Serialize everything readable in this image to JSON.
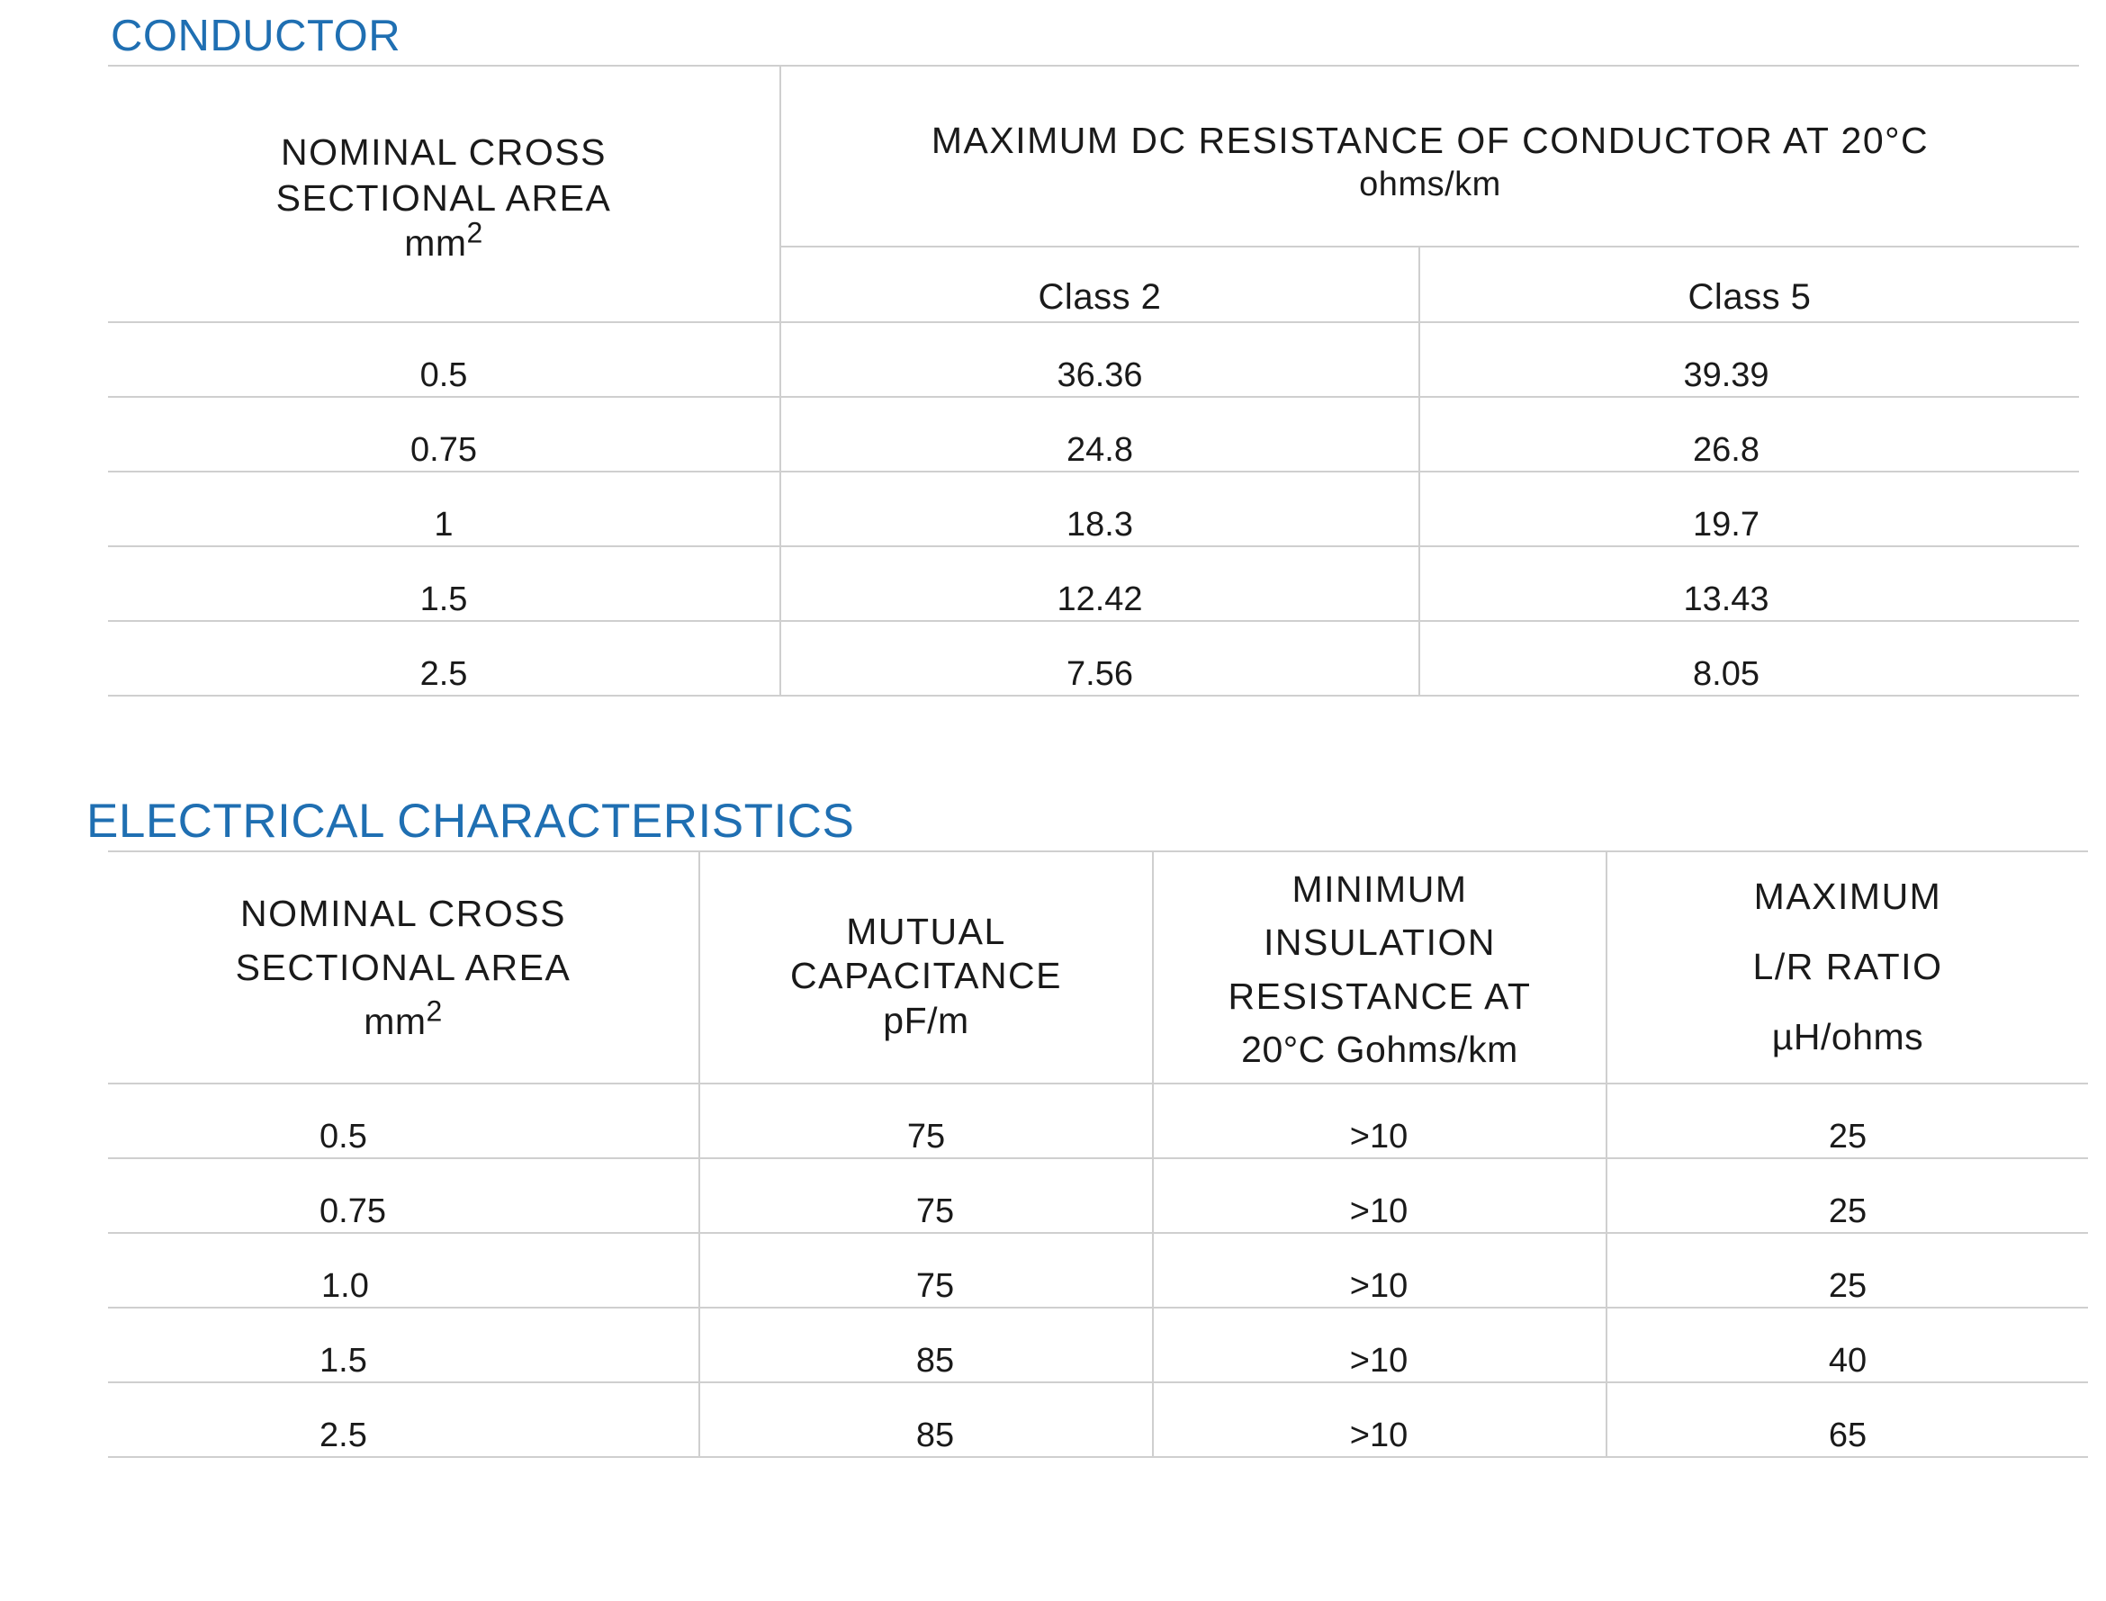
{
  "conductor": {
    "title": "CONDUCTOR",
    "area_header": {
      "line1": "NOMINAL CROSS",
      "line2": "SECTIONAL AREA",
      "unit": "mm",
      "unit_sup": "2"
    },
    "resistance_header": {
      "line1": "MAXIMUM DC RESISTANCE OF CONDUCTOR AT 20°C",
      "unit": "ohms/km"
    },
    "class_headers": [
      "Class 2",
      "Class 5"
    ],
    "rows": [
      [
        "0.5",
        "36.36",
        "39.39"
      ],
      [
        "0.75",
        "24.8",
        "26.8"
      ],
      [
        "1",
        "18.3",
        "19.7"
      ],
      [
        "1.5",
        "12.42",
        "13.43"
      ],
      [
        "2.5",
        "7.56",
        "8.05"
      ]
    ]
  },
  "electrical": {
    "title": "ELECTRICAL CHARACTERISTICS",
    "headers": {
      "area": {
        "line1": "NOMINAL CROSS",
        "line2": "SECTIONAL AREA",
        "unit": "mm",
        "unit_sup": "2"
      },
      "capacitance": {
        "line1": "MUTUAL",
        "line2": "CAPACITANCE",
        "unit": "pF/m"
      },
      "insulation": {
        "line1": "MINIMUM",
        "line2": "INSULATION",
        "line3": "RESISTANCE AT",
        "line4": "20°C Gohms/km"
      },
      "lr_ratio": {
        "line1": "MAXIMUM",
        "line2": "L/R RATIO",
        "unit": "µH/ohms"
      }
    },
    "rows": [
      [
        "0.5",
        "75",
        ">10",
        "25"
      ],
      [
        "0.75",
        "75",
        ">10",
        "25"
      ],
      [
        "1.0",
        "75",
        ">10",
        "25"
      ],
      [
        "1.5",
        "85",
        ">10",
        "40"
      ],
      [
        "2.5",
        "85",
        ">10",
        "65"
      ]
    ]
  }
}
